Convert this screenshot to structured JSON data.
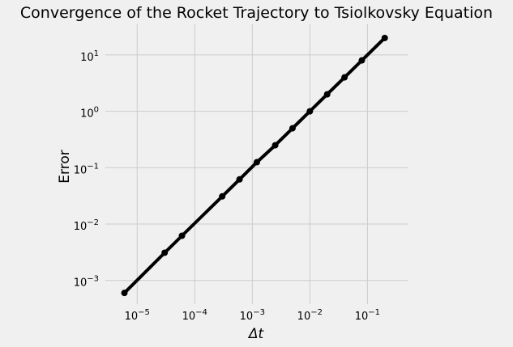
{
  "chart_data": {
    "type": "line",
    "title": "Convergence of the Rocket Trajectory to Tsiolkovsky Equation",
    "xlabel": "Δt",
    "ylabel": "Error",
    "xscale": "log",
    "yscale": "log",
    "xlim": [
      2.8e-06,
      0.5
    ],
    "ylim": [
      0.00038,
      35
    ],
    "grid": true,
    "line_color": "#000000",
    "x_ticks": [
      {
        "value": 1e-05,
        "base": "10",
        "exp": "−5"
      },
      {
        "value": 0.0001,
        "base": "10",
        "exp": "−4"
      },
      {
        "value": 0.001,
        "base": "10",
        "exp": "−3"
      },
      {
        "value": 0.01,
        "base": "10",
        "exp": "−2"
      },
      {
        "value": 0.1,
        "base": "10",
        "exp": "−1"
      }
    ],
    "y_ticks": [
      {
        "value": 0.001,
        "base": "10",
        "exp": "−3"
      },
      {
        "value": 0.01,
        "base": "10",
        "exp": "−2"
      },
      {
        "value": 0.1,
        "base": "10",
        "exp": "−1"
      },
      {
        "value": 1,
        "base": "10",
        "exp": "0"
      },
      {
        "value": 10,
        "base": "10",
        "exp": "1"
      }
    ],
    "series": [
      {
        "x": [
          6e-06,
          3e-05,
          6e-05,
          0.0003,
          0.0006,
          0.0012,
          0.0025,
          0.005,
          0.01,
          0.02,
          0.04,
          0.08,
          0.2
        ],
        "y": [
          0.0006,
          0.0031,
          0.0062,
          0.031,
          0.062,
          0.125,
          0.25,
          0.5,
          1.0,
          2.0,
          4.0,
          8.0,
          20.0
        ]
      }
    ]
  }
}
